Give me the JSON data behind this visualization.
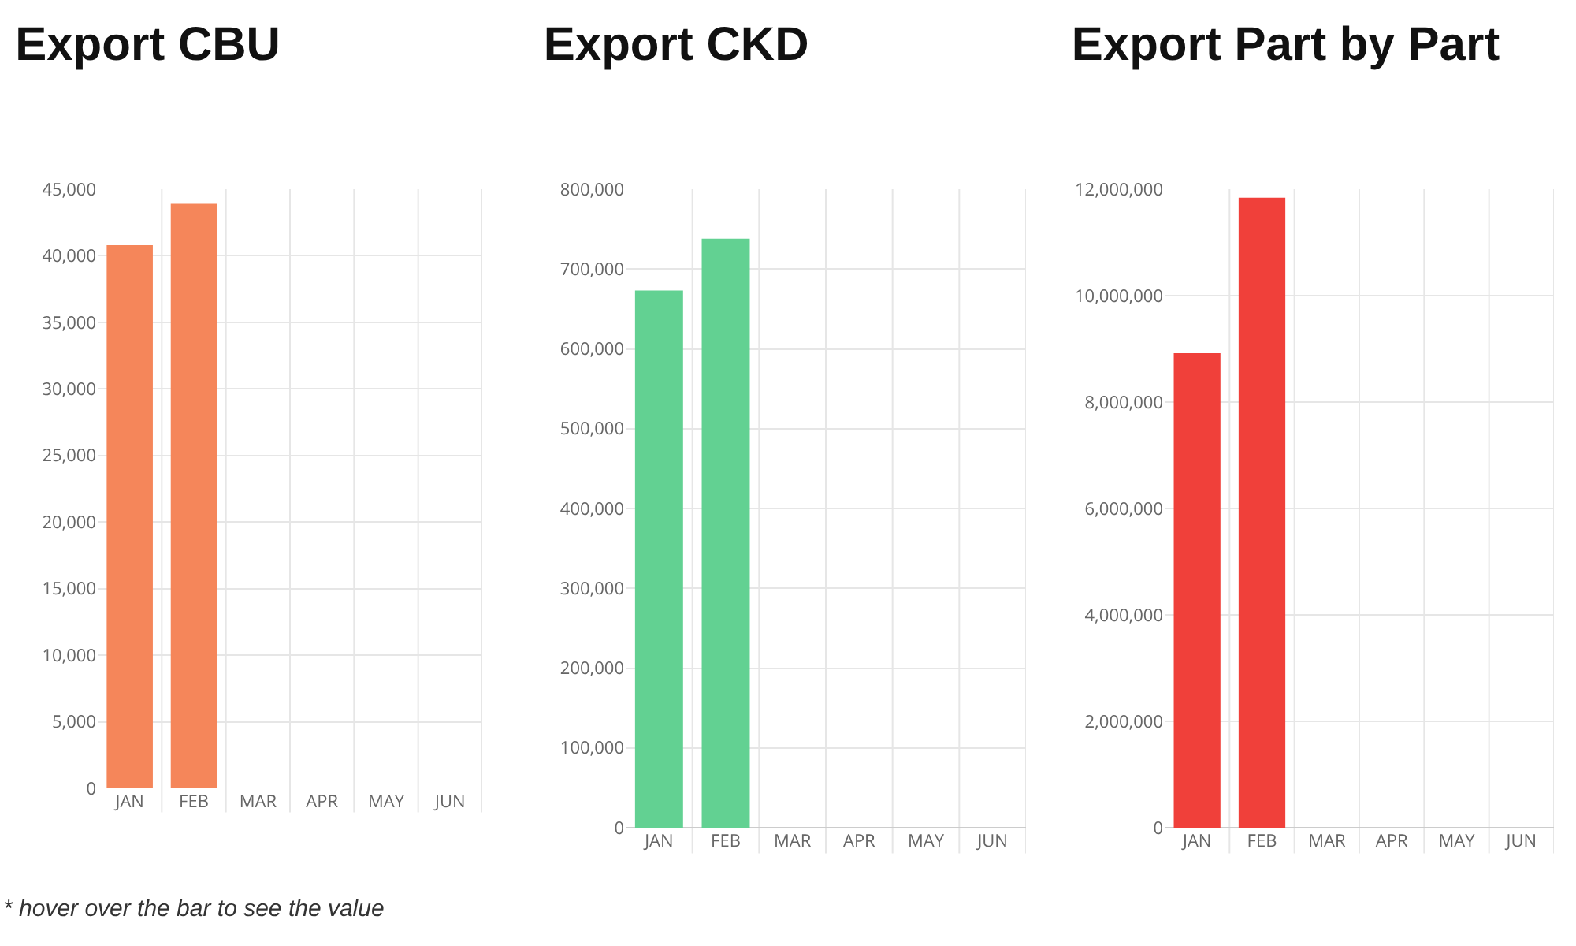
{
  "chart_data": [
    {
      "type": "bar",
      "title": "Export CBU",
      "categories": [
        "JAN",
        "FEB",
        "MAR",
        "APR",
        "MAY",
        "JUN"
      ],
      "values": [
        40800,
        43900,
        null,
        null,
        null,
        null
      ],
      "color": "#f5865a",
      "ylim": [
        0,
        45000
      ],
      "yticks": [
        {
          "value": 0,
          "label": "0"
        },
        {
          "value": 5000,
          "label": "5,000"
        },
        {
          "value": 10000,
          "label": "10,000"
        },
        {
          "value": 15000,
          "label": "15,000"
        },
        {
          "value": 20000,
          "label": "20,000"
        },
        {
          "value": 25000,
          "label": "25,000"
        },
        {
          "value": 30000,
          "label": "30,000"
        },
        {
          "value": 35000,
          "label": "35,000"
        },
        {
          "value": 40000,
          "label": "40,000"
        },
        {
          "value": 45000,
          "label": "45,000"
        }
      ],
      "grid": true,
      "annotations": [
        "* hover over the bar to see the value"
      ]
    },
    {
      "type": "bar",
      "title": "Export CKD",
      "categories": [
        "JAN",
        "FEB",
        "MAR",
        "APR",
        "MAY",
        "JUN"
      ],
      "values": [
        673000,
        738000,
        null,
        null,
        null,
        null
      ],
      "color": "#62d192",
      "ylim": [
        0,
        800000
      ],
      "yticks": [
        {
          "value": 0,
          "label": "0"
        },
        {
          "value": 100000,
          "label": "100,000"
        },
        {
          "value": 200000,
          "label": "200,000"
        },
        {
          "value": 300000,
          "label": "300,000"
        },
        {
          "value": 400000,
          "label": "400,000"
        },
        {
          "value": 500000,
          "label": "500,000"
        },
        {
          "value": 600000,
          "label": "600,000"
        },
        {
          "value": 700000,
          "label": "700,000"
        },
        {
          "value": 800000,
          "label": "800,000"
        }
      ],
      "grid": true
    },
    {
      "type": "bar",
      "title": "Export Part by Part",
      "categories": [
        "JAN",
        "FEB",
        "MAR",
        "APR",
        "MAY",
        "JUN"
      ],
      "values": [
        8920000,
        11840000,
        null,
        null,
        null,
        null
      ],
      "color": "#f0403a",
      "ylim": [
        0,
        12000000
      ],
      "yticks": [
        {
          "value": 0,
          "label": "0"
        },
        {
          "value": 2000000,
          "label": "2,000,000"
        },
        {
          "value": 4000000,
          "label": "4,000,000"
        },
        {
          "value": 6000000,
          "label": "6,000,000"
        },
        {
          "value": 8000000,
          "label": "8,000,000"
        },
        {
          "value": 10000000,
          "label": "10,000,000"
        },
        {
          "value": 12000000,
          "label": "12,000,000"
        }
      ],
      "grid": true
    }
  ]
}
